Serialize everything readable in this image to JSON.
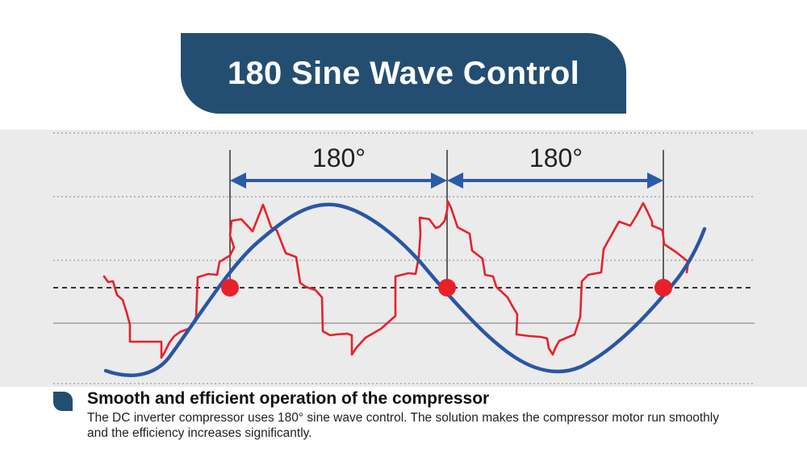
{
  "title": "180 Sine Wave Control",
  "diagram": {
    "angle_left": "180°",
    "angle_right": "180°",
    "colors": {
      "sine_wave": "#2a56a3",
      "ripple_wave": "#e8202a",
      "arrow": "#2a5ba8",
      "marker": "#e8202a",
      "banner": "#234e72"
    }
  },
  "caption": {
    "heading": "Smooth and efficient operation of the compressor",
    "body": "The DC inverter compressor uses 180° sine wave control. The solution makes the compressor motor run smoothly and the efficiency increases significantly."
  }
}
